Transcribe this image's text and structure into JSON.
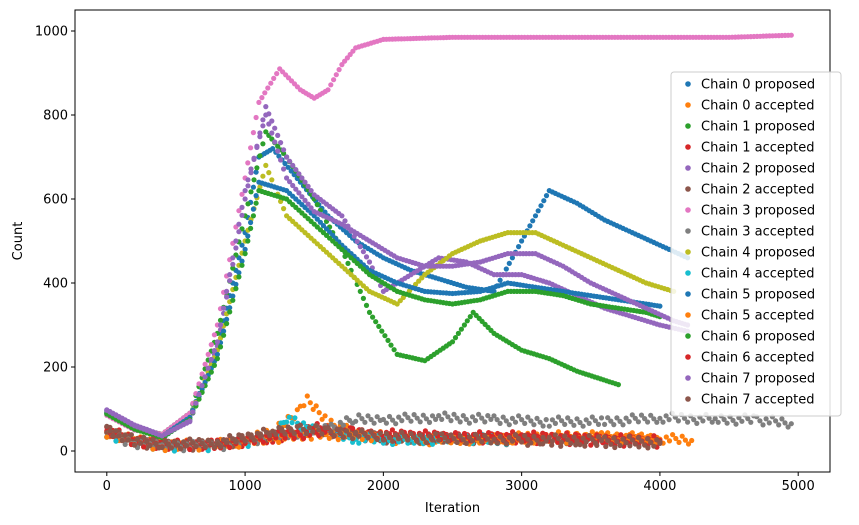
{
  "chart_data": {
    "type": "scatter",
    "title": "",
    "xlabel": "Iteration",
    "ylabel": "Count",
    "xlim": [
      -230,
      5230
    ],
    "ylim": [
      -50,
      1050
    ],
    "xticks": [
      0,
      1000,
      2000,
      3000,
      4000,
      5000
    ],
    "yticks": [
      0,
      200,
      400,
      600,
      800,
      1000
    ],
    "grid": false,
    "legend_position": "right",
    "series": [
      {
        "name": "Chain 0 proposed",
        "color": "#1f77b4",
        "kind": "proposed",
        "points": [
          [
            0,
            95
          ],
          [
            200,
            60
          ],
          [
            400,
            30
          ],
          [
            600,
            80
          ],
          [
            800,
            250
          ],
          [
            1000,
            520
          ],
          [
            1100,
            700
          ],
          [
            1200,
            720
          ],
          [
            1400,
            640
          ],
          [
            1600,
            560
          ],
          [
            1800,
            500
          ],
          [
            2000,
            460
          ],
          [
            2200,
            430
          ],
          [
            2400,
            410
          ],
          [
            2600,
            390
          ],
          [
            2800,
            380
          ],
          [
            3000,
            500
          ],
          [
            3100,
            560
          ],
          [
            3200,
            620
          ],
          [
            3400,
            590
          ],
          [
            3600,
            550
          ],
          [
            3800,
            520
          ],
          [
            4000,
            490
          ],
          [
            4200,
            460
          ]
        ]
      },
      {
        "name": "Chain 0 accepted",
        "color": "#ff7f0e",
        "kind": "accepted",
        "points": [
          [
            0,
            45
          ],
          [
            200,
            25
          ],
          [
            400,
            15
          ],
          [
            600,
            15
          ],
          [
            800,
            18
          ],
          [
            1000,
            25
          ],
          [
            1200,
            45
          ],
          [
            1400,
            100
          ],
          [
            1450,
            120
          ],
          [
            1600,
            70
          ],
          [
            1800,
            40
          ],
          [
            2000,
            30
          ],
          [
            2400,
            25
          ],
          [
            2800,
            30
          ],
          [
            3200,
            35
          ],
          [
            3600,
            35
          ],
          [
            4000,
            30
          ],
          [
            4230,
            25
          ]
        ]
      },
      {
        "name": "Chain 1 proposed",
        "color": "#2ca02c",
        "kind": "proposed",
        "points": [
          [
            0,
            90
          ],
          [
            200,
            55
          ],
          [
            400,
            40
          ],
          [
            600,
            90
          ],
          [
            800,
            280
          ],
          [
            1000,
            560
          ],
          [
            1150,
            760
          ],
          [
            1300,
            700
          ],
          [
            1500,
            600
          ],
          [
            1700,
            480
          ],
          [
            1900,
            330
          ],
          [
            2100,
            230
          ],
          [
            2300,
            215
          ],
          [
            2500,
            260
          ],
          [
            2650,
            330
          ],
          [
            2800,
            280
          ],
          [
            3000,
            240
          ],
          [
            3200,
            220
          ],
          [
            3400,
            190
          ],
          [
            3700,
            158
          ]
        ]
      },
      {
        "name": "Chain 1 accepted",
        "color": "#d62728",
        "kind": "accepted",
        "points": [
          [
            0,
            50
          ],
          [
            200,
            25
          ],
          [
            400,
            15
          ],
          [
            800,
            15
          ],
          [
            1200,
            30
          ],
          [
            1500,
            55
          ],
          [
            2000,
            35
          ],
          [
            2500,
            30
          ],
          [
            3000,
            30
          ],
          [
            3500,
            25
          ],
          [
            4000,
            20
          ]
        ]
      },
      {
        "name": "Chain 2 proposed",
        "color": "#9467bd",
        "kind": "proposed",
        "points": [
          [
            0,
            98
          ],
          [
            200,
            62
          ],
          [
            400,
            38
          ],
          [
            600,
            70
          ],
          [
            800,
            250
          ],
          [
            1000,
            600
          ],
          [
            1150,
            820
          ],
          [
            1300,
            700
          ],
          [
            1500,
            610
          ],
          [
            1700,
            560
          ],
          [
            1900,
            450
          ],
          [
            2000,
            380
          ],
          [
            2200,
            420
          ],
          [
            2400,
            460
          ],
          [
            2600,
            450
          ],
          [
            2800,
            420
          ],
          [
            3000,
            420
          ],
          [
            3200,
            400
          ],
          [
            3400,
            370
          ],
          [
            3600,
            340
          ],
          [
            3800,
            320
          ],
          [
            4000,
            300
          ],
          [
            4200,
            285
          ]
        ]
      },
      {
        "name": "Chain 2 accepted",
        "color": "#8c564b",
        "kind": "accepted",
        "points": [
          [
            0,
            48
          ],
          [
            200,
            22
          ],
          [
            400,
            12
          ],
          [
            800,
            14
          ],
          [
            1200,
            40
          ],
          [
            1500,
            50
          ],
          [
            2000,
            30
          ],
          [
            2500,
            30
          ],
          [
            3000,
            25
          ],
          [
            3500,
            20
          ],
          [
            4000,
            18
          ]
        ]
      },
      {
        "name": "Chain 3 proposed",
        "color": "#e377c2",
        "kind": "proposed",
        "points": [
          [
            0,
            85
          ],
          [
            200,
            50
          ],
          [
            400,
            40
          ],
          [
            600,
            90
          ],
          [
            800,
            300
          ],
          [
            1000,
            650
          ],
          [
            1100,
            830
          ],
          [
            1250,
            910
          ],
          [
            1400,
            860
          ],
          [
            1500,
            840
          ],
          [
            1600,
            860
          ],
          [
            1700,
            920
          ],
          [
            1800,
            960
          ],
          [
            2000,
            980
          ],
          [
            2500,
            985
          ],
          [
            3000,
            985
          ],
          [
            3500,
            985
          ],
          [
            4000,
            985
          ],
          [
            4500,
            985
          ],
          [
            4950,
            990
          ]
        ]
      },
      {
        "name": "Chain 3 accepted",
        "color": "#7f7f7f",
        "kind": "accepted",
        "points": [
          [
            0,
            40
          ],
          [
            200,
            20
          ],
          [
            400,
            12
          ],
          [
            800,
            12
          ],
          [
            1200,
            35
          ],
          [
            1600,
            55
          ],
          [
            1800,
            75
          ],
          [
            2000,
            75
          ],
          [
            2400,
            80
          ],
          [
            2800,
            75
          ],
          [
            3200,
            70
          ],
          [
            3600,
            70
          ],
          [
            4000,
            80
          ],
          [
            4400,
            75
          ],
          [
            4700,
            75
          ],
          [
            4950,
            65
          ]
        ]
      },
      {
        "name": "Chain 4 proposed",
        "color": "#bcbd22",
        "kind": "proposed",
        "points": [
          [
            0,
            92
          ],
          [
            200,
            58
          ],
          [
            400,
            35
          ],
          [
            600,
            80
          ],
          [
            800,
            240
          ],
          [
            1000,
            500
          ],
          [
            1150,
            680
          ],
          [
            1300,
            560
          ],
          [
            1500,
            500
          ],
          [
            1700,
            440
          ],
          [
            1900,
            380
          ],
          [
            2100,
            350
          ],
          [
            2300,
            420
          ],
          [
            2500,
            470
          ],
          [
            2700,
            500
          ],
          [
            2900,
            520
          ],
          [
            3100,
            520
          ],
          [
            3300,
            490
          ],
          [
            3500,
            460
          ],
          [
            3700,
            430
          ],
          [
            3900,
            400
          ],
          [
            4100,
            380
          ]
        ]
      },
      {
        "name": "Chain 4 accepted",
        "color": "#17becf",
        "kind": "accepted",
        "points": [
          [
            0,
            42
          ],
          [
            200,
            20
          ],
          [
            400,
            10
          ],
          [
            800,
            12
          ],
          [
            1200,
            30
          ],
          [
            1300,
            80
          ],
          [
            1400,
            60
          ],
          [
            1800,
            30
          ],
          [
            2200,
            25
          ],
          [
            2600,
            30
          ],
          [
            3000,
            25
          ]
        ]
      },
      {
        "name": "Chain 5 proposed",
        "color": "#1f77b4",
        "kind": "proposed",
        "points": [
          [
            0,
            90
          ],
          [
            200,
            55
          ],
          [
            400,
            35
          ],
          [
            600,
            80
          ],
          [
            800,
            230
          ],
          [
            1000,
            480
          ],
          [
            1100,
            640
          ],
          [
            1300,
            620
          ],
          [
            1500,
            560
          ],
          [
            1700,
            490
          ],
          [
            1900,
            430
          ],
          [
            2100,
            400
          ],
          [
            2300,
            380
          ],
          [
            2500,
            375
          ],
          [
            2700,
            380
          ],
          [
            2900,
            400
          ],
          [
            3100,
            390
          ],
          [
            3300,
            380
          ],
          [
            3500,
            370
          ],
          [
            3700,
            360
          ],
          [
            3900,
            350
          ],
          [
            4000,
            345
          ]
        ]
      },
      {
        "name": "Chain 5 accepted",
        "color": "#ff7f0e",
        "kind": "accepted",
        "points": [
          [
            0,
            44
          ],
          [
            200,
            22
          ],
          [
            400,
            12
          ],
          [
            800,
            14
          ],
          [
            1200,
            30
          ],
          [
            1500,
            40
          ],
          [
            2000,
            35
          ],
          [
            2500,
            30
          ],
          [
            3000,
            30
          ],
          [
            3500,
            30
          ],
          [
            4000,
            28
          ]
        ]
      },
      {
        "name": "Chain 6 proposed",
        "color": "#2ca02c",
        "kind": "proposed",
        "points": [
          [
            0,
            88
          ],
          [
            200,
            52
          ],
          [
            400,
            32
          ],
          [
            600,
            75
          ],
          [
            800,
            220
          ],
          [
            1000,
            470
          ],
          [
            1100,
            620
          ],
          [
            1300,
            600
          ],
          [
            1500,
            540
          ],
          [
            1700,
            480
          ],
          [
            1900,
            420
          ],
          [
            2100,
            380
          ],
          [
            2300,
            360
          ],
          [
            2500,
            350
          ],
          [
            2700,
            360
          ],
          [
            2900,
            380
          ],
          [
            3100,
            380
          ],
          [
            3300,
            370
          ],
          [
            3500,
            350
          ],
          [
            3700,
            340
          ],
          [
            3900,
            330
          ],
          [
            4000,
            320
          ]
        ]
      },
      {
        "name": "Chain 6 accepted",
        "color": "#d62728",
        "kind": "accepted",
        "points": [
          [
            0,
            46
          ],
          [
            200,
            24
          ],
          [
            400,
            14
          ],
          [
            800,
            15
          ],
          [
            1200,
            35
          ],
          [
            1600,
            45
          ],
          [
            2000,
            40
          ],
          [
            2500,
            35
          ],
          [
            3000,
            35
          ],
          [
            3500,
            30
          ],
          [
            4000,
            25
          ]
        ]
      },
      {
        "name": "Chain 7 proposed",
        "color": "#9467bd",
        "kind": "proposed",
        "points": [
          [
            0,
            97
          ],
          [
            200,
            60
          ],
          [
            400,
            36
          ],
          [
            600,
            72
          ],
          [
            800,
            260
          ],
          [
            1000,
            620
          ],
          [
            1150,
            800
          ],
          [
            1300,
            650
          ],
          [
            1500,
            570
          ],
          [
            1700,
            540
          ],
          [
            1900,
            500
          ],
          [
            2100,
            460
          ],
          [
            2300,
            440
          ],
          [
            2500,
            440
          ],
          [
            2700,
            450
          ],
          [
            2900,
            470
          ],
          [
            3100,
            470
          ],
          [
            3300,
            440
          ],
          [
            3500,
            400
          ],
          [
            3700,
            370
          ],
          [
            3900,
            340
          ],
          [
            4100,
            310
          ],
          [
            4200,
            300
          ]
        ]
      },
      {
        "name": "Chain 7 accepted",
        "color": "#8c564b",
        "kind": "accepted",
        "points": [
          [
            0,
            50
          ],
          [
            200,
            25
          ],
          [
            400,
            15
          ],
          [
            800,
            20
          ],
          [
            1200,
            45
          ],
          [
            1400,
            55
          ],
          [
            1600,
            45
          ],
          [
            2000,
            35
          ],
          [
            2400,
            30
          ],
          [
            2800,
            28
          ],
          [
            3200,
            28
          ],
          [
            3600,
            25
          ],
          [
            4000,
            22
          ]
        ]
      }
    ]
  }
}
